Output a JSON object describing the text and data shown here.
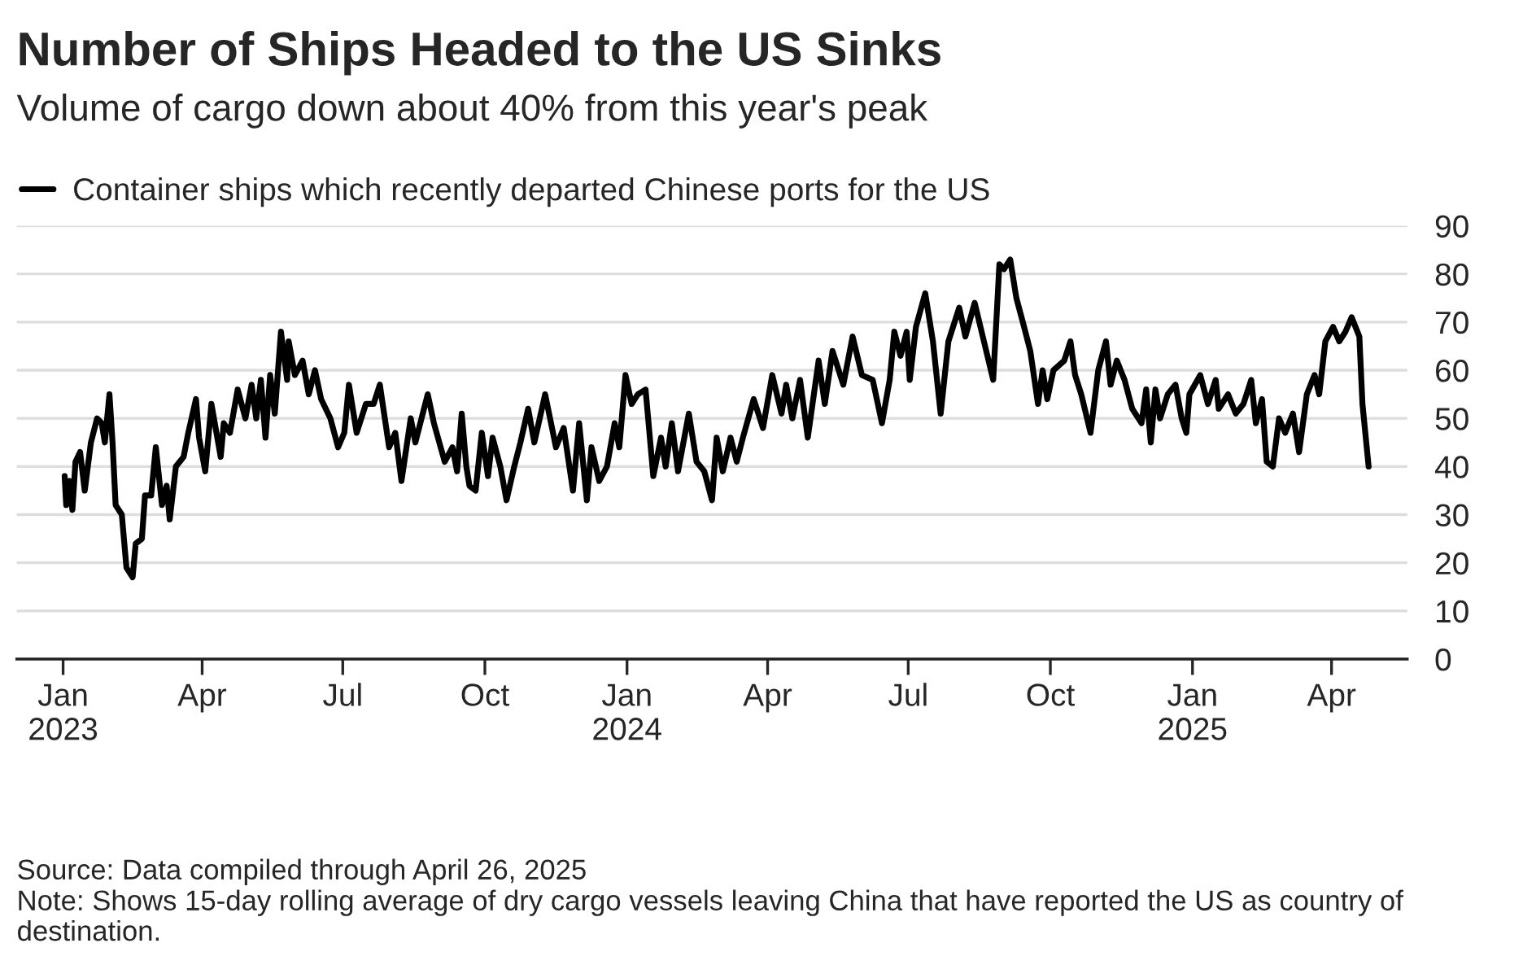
{
  "chart_data": {
    "type": "line",
    "title": "Number of Ships Headed to the US Sinks",
    "subtitle": "Volume of cargo down about 40% from this year's peak",
    "x": [
      "2023-01-02",
      "2023-01-03",
      "2023-01-05",
      "2023-01-07",
      "2023-01-09",
      "2023-01-12",
      "2023-01-15",
      "2023-01-19",
      "2023-01-23",
      "2023-01-26",
      "2023-01-28",
      "2023-01-31",
      "2023-02-02",
      "2023-02-04",
      "2023-02-08",
      "2023-02-11",
      "2023-02-15",
      "2023-02-17",
      "2023-02-21",
      "2023-02-23",
      "2023-02-27",
      "2023-03-02",
      "2023-03-06",
      "2023-03-09",
      "2023-03-11",
      "2023-03-15",
      "2023-03-20",
      "2023-03-23",
      "2023-03-28",
      "2023-03-30",
      "2023-04-03",
      "2023-04-07",
      "2023-04-13",
      "2023-04-15",
      "2023-04-19",
      "2023-04-24",
      "2023-04-29",
      "2023-05-03",
      "2023-05-06",
      "2023-05-09",
      "2023-05-12",
      "2023-05-15",
      "2023-05-18",
      "2023-05-22",
      "2023-05-26",
      "2023-05-27",
      "2023-05-31",
      "2023-06-05",
      "2023-06-09",
      "2023-06-13",
      "2023-06-17",
      "2023-06-23",
      "2023-06-28",
      "2023-07-02",
      "2023-07-05",
      "2023-07-10",
      "2023-07-16",
      "2023-07-21",
      "2023-07-25",
      "2023-07-31",
      "2023-08-04",
      "2023-08-08",
      "2023-08-14",
      "2023-08-17",
      "2023-08-21",
      "2023-08-25",
      "2023-08-29",
      "2023-09-05",
      "2023-09-10",
      "2023-09-13",
      "2023-09-16",
      "2023-09-19",
      "2023-09-21",
      "2023-09-25",
      "2023-09-29",
      "2023-10-03",
      "2023-10-06",
      "2023-10-11",
      "2023-10-15",
      "2023-10-20",
      "2023-10-24",
      "2023-10-29",
      "2023-11-02",
      "2023-11-09",
      "2023-11-16",
      "2023-11-21",
      "2023-11-27",
      "2023-12-01",
      "2023-12-06",
      "2023-12-09",
      "2023-12-14",
      "2023-12-19",
      "2023-12-24",
      "2023-12-27",
      "2023-12-31",
      "2024-01-04",
      "2024-01-08",
      "2024-01-13",
      "2024-01-18",
      "2024-01-23",
      "2024-01-26",
      "2024-01-30",
      "2024-02-03",
      "2024-02-10",
      "2024-02-15",
      "2024-02-20",
      "2024-02-25",
      "2024-02-28",
      "2024-03-03",
      "2024-03-08",
      "2024-03-12",
      "2024-03-16",
      "2024-03-23",
      "2024-03-29",
      "2024-04-04",
      "2024-04-10",
      "2024-04-13",
      "2024-04-17",
      "2024-04-22",
      "2024-04-27",
      "2024-05-04",
      "2024-05-08",
      "2024-05-13",
      "2024-05-20",
      "2024-05-26",
      "2024-06-01",
      "2024-06-08",
      "2024-06-14",
      "2024-06-19",
      "2024-06-22",
      "2024-06-26",
      "2024-06-30",
      "2024-07-02",
      "2024-07-06",
      "2024-07-12",
      "2024-07-17",
      "2024-07-22",
      "2024-07-27",
      "2024-08-03",
      "2024-08-07",
      "2024-08-13",
      "2024-08-19",
      "2024-08-25",
      "2024-08-29",
      "2024-09-01",
      "2024-09-05",
      "2024-09-09",
      "2024-09-14",
      "2024-09-18",
      "2024-09-23",
      "2024-09-26",
      "2024-09-29",
      "2024-10-03",
      "2024-10-10",
      "2024-10-14",
      "2024-10-17",
      "2024-10-21",
      "2024-10-27",
      "2024-11-01",
      "2024-11-06",
      "2024-11-09",
      "2024-11-13",
      "2024-11-18",
      "2024-11-23",
      "2024-11-29",
      "2024-12-02",
      "2024-12-05",
      "2024-12-08",
      "2024-12-11",
      "2024-12-16",
      "2024-12-21",
      "2024-12-25",
      "2024-12-28",
      "2024-12-30",
      "2025-01-06",
      "2025-01-11",
      "2025-01-16",
      "2025-01-18",
      "2025-01-24",
      "2025-01-29",
      "2025-02-03",
      "2025-02-08",
      "2025-02-11",
      "2025-02-15",
      "2025-02-18",
      "2025-02-22",
      "2025-02-26",
      "2025-03-02",
      "2025-03-07",
      "2025-03-11",
      "2025-03-16",
      "2025-03-21",
      "2025-03-24",
      "2025-03-28",
      "2025-04-02",
      "2025-04-06",
      "2025-04-10",
      "2025-04-14",
      "2025-04-19",
      "2025-04-21",
      "2025-04-25"
    ],
    "series": [
      {
        "name": "Container ships which recently departed Chinese ports for the US",
        "color": "#000000",
        "values": [
          38,
          32,
          37,
          31,
          41,
          43,
          35,
          45,
          50,
          49,
          45,
          55,
          45,
          32,
          30,
          19,
          17,
          24,
          25,
          34,
          34,
          44,
          32,
          36,
          29,
          40,
          42,
          47,
          54,
          46,
          39,
          53,
          42,
          49,
          47,
          56,
          50,
          57,
          50,
          58,
          46,
          59,
          51,
          68,
          58,
          66,
          59,
          62,
          55,
          60,
          54,
          50,
          44,
          47,
          57,
          47,
          53,
          53,
          57,
          44,
          47,
          37,
          50,
          45,
          50,
          55,
          49,
          41,
          44,
          39,
          51,
          40,
          36,
          35,
          47,
          38,
          46,
          40,
          33,
          40,
          45,
          52,
          45,
          55,
          44,
          48,
          35,
          49,
          33,
          44,
          37,
          40,
          49,
          44,
          59,
          53,
          55,
          56,
          38,
          46,
          40,
          49,
          39,
          51,
          41,
          39,
          33,
          46,
          39,
          46,
          41,
          46,
          54,
          48,
          59,
          51,
          57,
          50,
          58,
          46,
          62,
          53,
          64,
          57,
          67,
          59,
          58,
          49,
          58,
          68,
          63,
          68,
          58,
          69,
          76,
          66,
          51,
          66,
          73,
          67,
          74,
          66,
          58,
          82,
          81,
          83,
          75,
          69,
          64,
          53,
          60,
          54,
          60,
          62,
          66,
          59,
          55,
          47,
          60,
          66,
          57,
          62,
          58,
          52,
          49,
          56,
          45,
          56,
          50,
          55,
          57,
          50,
          47,
          55,
          59,
          53,
          58,
          52,
          55,
          51,
          53,
          58,
          49,
          54,
          41,
          40,
          50,
          47,
          51,
          43,
          55,
          59,
          55,
          66,
          69,
          66,
          68,
          71,
          67,
          53,
          40
        ]
      }
    ],
    "xlim": [
      "2022-12-02",
      "2025-05-20"
    ],
    "xticks": [
      {
        "value": "2023-01-01",
        "label": "Jan\n2023"
      },
      {
        "value": "2023-04-01",
        "label": "Apr"
      },
      {
        "value": "2023-07-01",
        "label": "Jul"
      },
      {
        "value": "2023-10-01",
        "label": "Oct"
      },
      {
        "value": "2024-01-01",
        "label": "Jan\n2024"
      },
      {
        "value": "2024-04-01",
        "label": "Apr"
      },
      {
        "value": "2024-07-01",
        "label": "Jul"
      },
      {
        "value": "2024-10-01",
        "label": "Oct"
      },
      {
        "value": "2025-01-01",
        "label": "Jan\n2025"
      },
      {
        "value": "2025-04-01",
        "label": "Apr"
      }
    ],
    "ylim": [
      0,
      90
    ],
    "yticks": [
      0,
      10,
      20,
      30,
      40,
      50,
      60,
      70,
      80,
      90
    ],
    "grid": "y",
    "legend": "top left",
    "marker": "none",
    "line_style": "solid",
    "annotations": [
      "Source: Data compiled through April 26, 2025",
      "Note: Shows 15-day rolling average of dry cargo vessels leaving China that have reported the US as country of destination."
    ]
  }
}
